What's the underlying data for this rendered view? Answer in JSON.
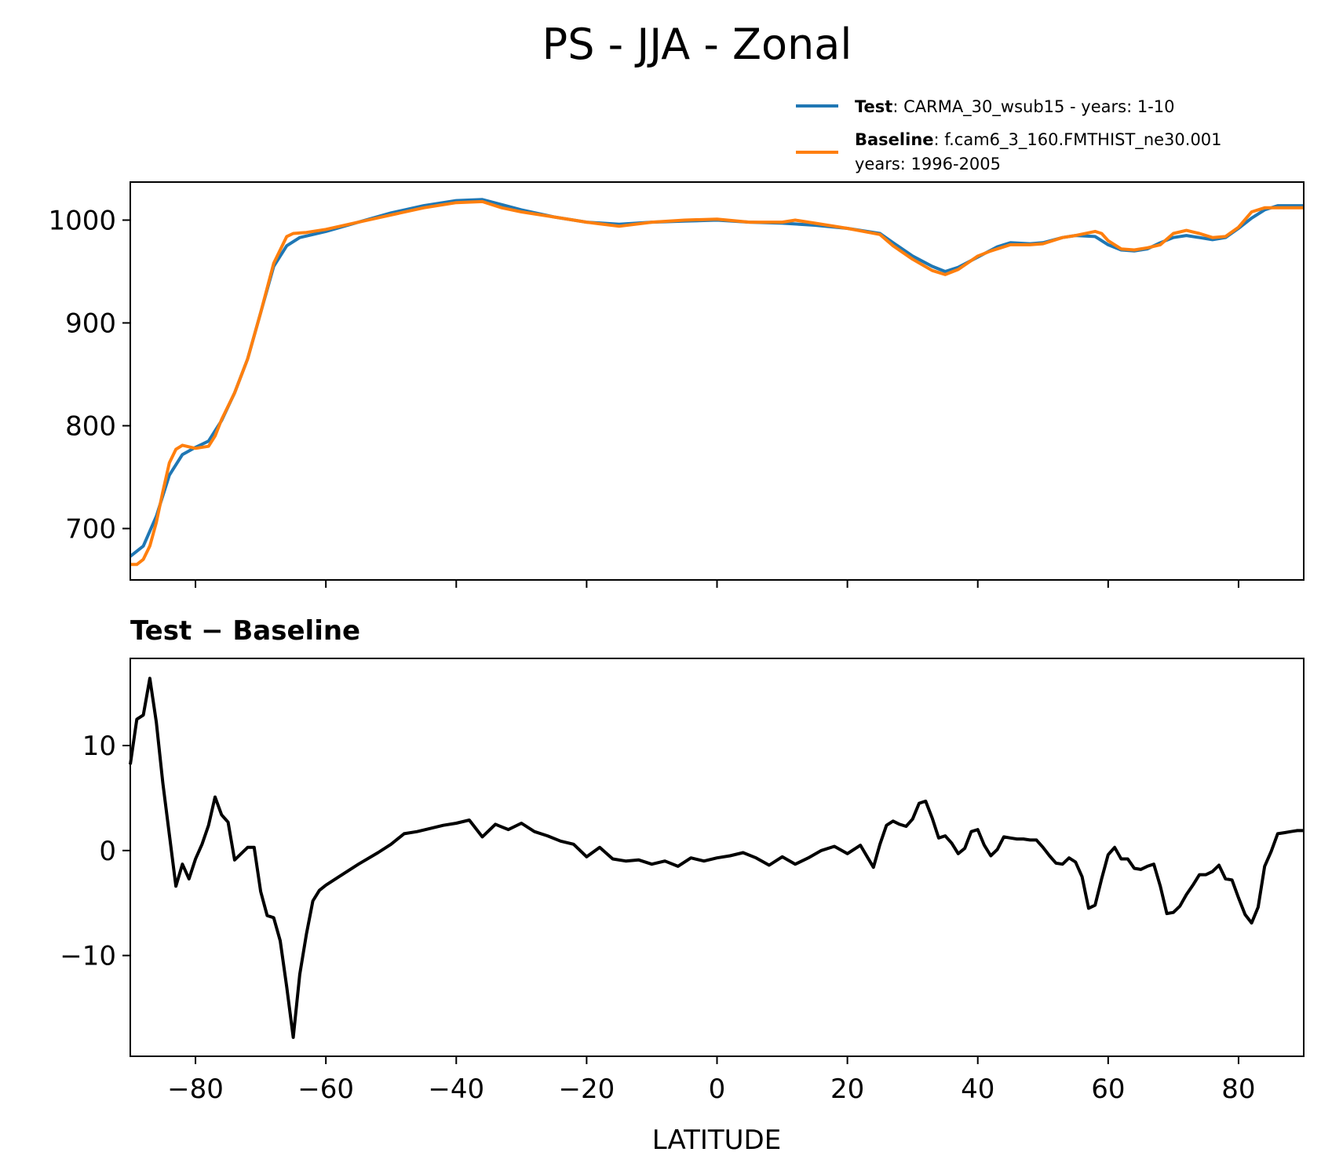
{
  "figure": {
    "title": "PS - JJA - Zonal",
    "legend": [
      {
        "bold": "Test",
        "rest": ": CARMA_30_wsub15 - years: 1-10",
        "rest2": "",
        "color": "#1f77b4"
      },
      {
        "bold": "Baseline",
        "rest": ": f.cam6_3_160.FMTHIST_ne30.001",
        "rest2": "years: 1996-2005",
        "color": "#ff7f0e"
      }
    ],
    "xlabel": "LATITUDE",
    "diff_title": "Test − Baseline"
  },
  "chart_data": [
    {
      "type": "line",
      "title": "",
      "xlim": [
        -90,
        90
      ],
      "ylim": [
        650,
        1037
      ],
      "yticks": [
        700,
        800,
        900,
        1000
      ],
      "ytick_labels": [
        "700",
        "800",
        "900",
        "1000"
      ],
      "xticks": [
        -80,
        -60,
        -40,
        -20,
        0,
        20,
        40,
        60,
        80
      ],
      "legend_placement": "above top-right",
      "series": [
        {
          "name": "Test",
          "color": "#1f77b4",
          "x": [
            -90,
            -88,
            -86,
            -84,
            -82,
            -80,
            -78,
            -76,
            -74,
            -72,
            -70,
            -68,
            -66,
            -64,
            -62,
            -60,
            -55,
            -50,
            -45,
            -40,
            -36,
            -33,
            -30,
            -25,
            -20,
            -15,
            -10,
            -5,
            0,
            5,
            10,
            15,
            20,
            25,
            27,
            30,
            33,
            35,
            37,
            40,
            43,
            45,
            48,
            50,
            53,
            55,
            58,
            60,
            62,
            64,
            66,
            68,
            70,
            72,
            74,
            76,
            78,
            80,
            82,
            84,
            86,
            88,
            90
          ],
          "y": [
            673,
            683,
            712,
            752,
            772,
            779,
            785,
            805,
            832,
            865,
            910,
            955,
            975,
            983,
            986,
            989,
            998,
            1007,
            1014,
            1019,
            1020,
            1015,
            1010,
            1003,
            998,
            996,
            998,
            999,
            1000,
            998,
            997,
            995,
            992,
            987,
            978,
            965,
            955,
            950,
            954,
            964,
            974,
            978,
            977,
            978,
            983,
            985,
            984,
            976,
            971,
            970,
            972,
            978,
            983,
            985,
            983,
            981,
            983,
            992,
            1002,
            1010,
            1014,
            1014,
            1014
          ]
        },
        {
          "name": "Baseline",
          "color": "#ff7f0e",
          "x": [
            -90,
            -89,
            -88,
            -87,
            -86,
            -85,
            -84,
            -83,
            -82,
            -80,
            -78,
            -77,
            -76,
            -74,
            -72,
            -70,
            -68,
            -66,
            -65,
            -63,
            -60,
            -55,
            -50,
            -45,
            -40,
            -36,
            -33,
            -30,
            -25,
            -20,
            -15,
            -10,
            -5,
            0,
            5,
            10,
            12,
            15,
            20,
            25,
            27,
            30,
            33,
            35,
            37,
            40,
            42,
            45,
            48,
            50,
            53,
            55,
            58,
            59,
            60,
            62,
            64,
            66,
            68,
            70,
            72,
            74,
            76,
            78,
            80,
            82,
            84,
            86,
            88,
            90
          ],
          "y": [
            665,
            665,
            670,
            683,
            706,
            736,
            764,
            777,
            781,
            778,
            780,
            790,
            806,
            832,
            865,
            910,
            958,
            984,
            987,
            988,
            991,
            998,
            1005,
            1012,
            1017,
            1018,
            1012,
            1008,
            1003,
            998,
            994,
            998,
            1000,
            1001,
            998,
            998,
            1000,
            997,
            992,
            986,
            975,
            962,
            951,
            947,
            952,
            965,
            970,
            976,
            976,
            977,
            983,
            985,
            989,
            987,
            980,
            972,
            971,
            973,
            976,
            987,
            990,
            987,
            983,
            984,
            993,
            1008,
            1012,
            1012,
            1012,
            1012
          ]
        }
      ]
    },
    {
      "type": "line",
      "title": "Test − Baseline",
      "xlabel": "LATITUDE",
      "xlim": [
        -90,
        90
      ],
      "ylim": [
        -19.6,
        18.3
      ],
      "yticks": [
        -10,
        0,
        10
      ],
      "ytick_labels": [
        "−10",
        "0",
        "10"
      ],
      "xticks": [
        -80,
        -60,
        -40,
        -20,
        0,
        20,
        40,
        60,
        80
      ],
      "xtick_labels": [
        "−80",
        "−60",
        "−40",
        "−20",
        "0",
        "20",
        "40",
        "60",
        "80"
      ],
      "series": [
        {
          "color": "#000000",
          "x": [
            -90,
            -89,
            -88,
            -87,
            -86,
            -85,
            -84,
            -83,
            -82,
            -81,
            -80,
            -79,
            -78,
            -77,
            -76,
            -75,
            -74,
            -73,
            -72,
            -71,
            -70,
            -69,
            -68,
            -67,
            -66,
            -65,
            -64,
            -63,
            -62,
            -61,
            -60,
            -58,
            -55,
            -52,
            -50,
            -48,
            -46,
            -44,
            -42,
            -40,
            -38,
            -36,
            -34,
            -32,
            -30,
            -28,
            -26,
            -24,
            -22,
            -20,
            -18,
            -16,
            -14,
            -12,
            -10,
            -8,
            -6,
            -4,
            -2,
            0,
            2,
            4,
            6,
            8,
            10,
            12,
            14,
            16,
            18,
            20,
            22,
            24,
            25,
            26,
            27,
            28,
            29,
            30,
            31,
            32,
            33,
            34,
            35,
            36,
            37,
            38,
            39,
            40,
            41,
            42,
            43,
            44,
            45,
            46,
            47,
            48,
            49,
            50,
            51,
            52,
            53,
            54,
            55,
            56,
            57,
            58,
            59,
            60,
            61,
            62,
            63,
            64,
            65,
            66,
            67,
            68,
            69,
            70,
            71,
            72,
            73,
            74,
            75,
            76,
            77,
            78,
            79,
            80,
            81,
            82,
            83,
            84,
            85,
            86,
            87,
            88,
            89,
            90
          ],
          "y": [
            8.2,
            12.5,
            12.9,
            16.4,
            12.2,
            6.4,
            1.5,
            -3.4,
            -1.3,
            -2.7,
            -0.8,
            0.6,
            2.4,
            5.1,
            3.4,
            2.7,
            -0.9,
            -0.3,
            0.3,
            0.3,
            -3.9,
            -6.2,
            -6.4,
            -8.6,
            -13.0,
            -17.8,
            -11.8,
            -8.0,
            -4.8,
            -3.8,
            -3.3,
            -2.5,
            -1.3,
            -0.2,
            0.6,
            1.6,
            1.8,
            2.1,
            2.4,
            2.6,
            2.9,
            1.3,
            2.5,
            2.0,
            2.6,
            1.8,
            1.4,
            0.9,
            0.6,
            -0.6,
            0.3,
            -0.8,
            -1.0,
            -0.9,
            -1.3,
            -1.0,
            -1.5,
            -0.7,
            -1.0,
            -0.7,
            -0.5,
            -0.2,
            -0.7,
            -1.4,
            -0.6,
            -1.3,
            -0.7,
            0.0,
            0.4,
            -0.3,
            0.5,
            -1.6,
            0.6,
            2.4,
            2.8,
            2.5,
            2.3,
            3.0,
            4.5,
            4.7,
            3.1,
            1.2,
            1.4,
            0.7,
            -0.3,
            0.2,
            1.8,
            2.0,
            0.5,
            -0.5,
            0.1,
            1.3,
            1.2,
            1.1,
            1.1,
            1.0,
            1.0,
            0.3,
            -0.5,
            -1.2,
            -1.3,
            -0.7,
            -1.1,
            -2.5,
            -5.5,
            -5.2,
            -2.7,
            -0.4,
            0.3,
            -0.8,
            -0.8,
            -1.7,
            -1.8,
            -1.5,
            -1.3,
            -3.4,
            -6.0,
            -5.9,
            -5.3,
            -4.2,
            -3.3,
            -2.3,
            -2.3,
            -2.0,
            -1.4,
            -2.7,
            -2.8,
            -4.5,
            -6.1,
            -6.9,
            -5.4,
            -1.5,
            -0.1,
            1.6,
            1.7,
            1.8,
            1.9,
            1.9
          ]
        }
      ]
    }
  ]
}
